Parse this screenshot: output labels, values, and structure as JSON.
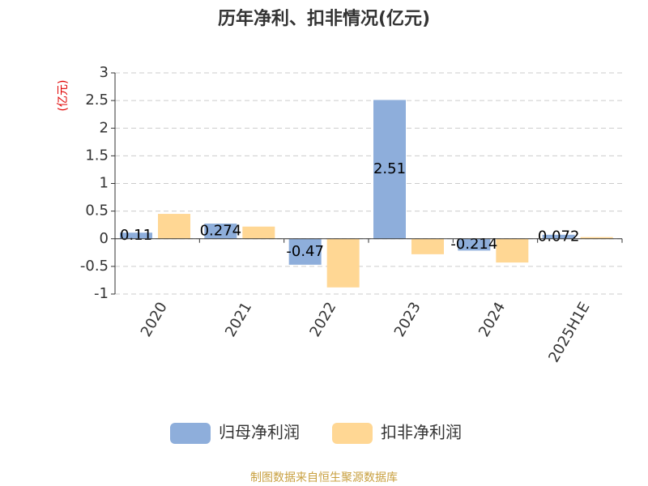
{
  "chart_data": {
    "type": "bar",
    "title": "历年净利、扣非情况(亿元)",
    "y_label": "(亿元)",
    "source": "制图数据来自恒生聚源数据库",
    "categories": [
      "2020",
      "2021",
      "2022",
      "2023",
      "2024",
      "2025H1E"
    ],
    "series": [
      {
        "name": "归母净利润",
        "color": "#8eaedb",
        "values": [
          0.11,
          0.274,
          -0.47,
          2.51,
          -0.214,
          0.072
        ]
      },
      {
        "name": "扣非净利润",
        "color": "#ffd794",
        "values": [
          0.45,
          0.22,
          -0.88,
          -0.28,
          -0.43,
          0.03
        ]
      }
    ],
    "ylim": [
      -1,
      3
    ],
    "yticks": [
      -1,
      -0.5,
      0,
      0.5,
      1,
      1.5,
      2,
      2.5,
      3
    ],
    "grid": true
  }
}
